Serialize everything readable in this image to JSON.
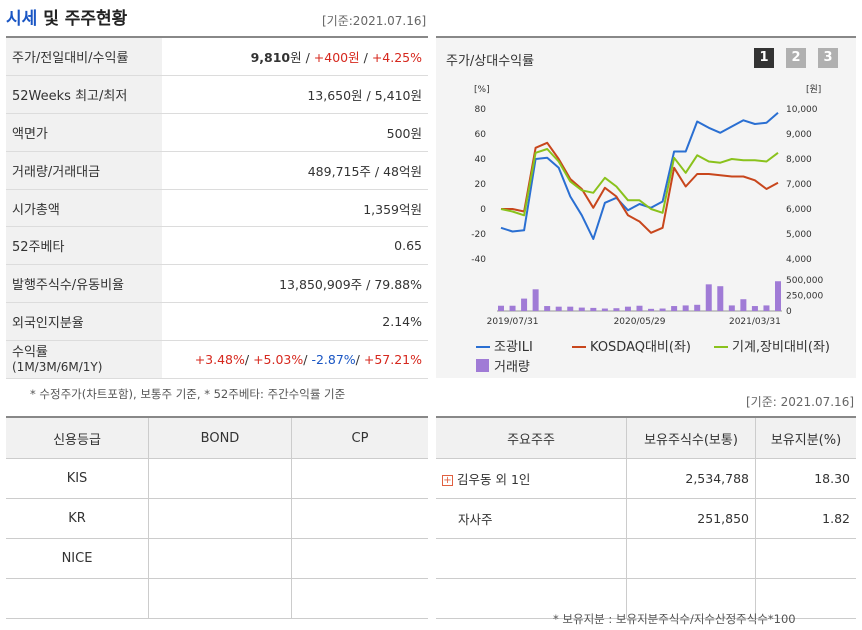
{
  "header": {
    "title_part1": "시세",
    "title_part2": " 및 주주현황",
    "date": "[기준:2021.07.16]"
  },
  "price_table": {
    "rows": [
      {
        "label": "주가/전일대비/수익률",
        "price": "9,810",
        "unit": "원 / ",
        "change": "+400원",
        "sep": " / ",
        "rate": "+4.25%"
      },
      {
        "label": "52Weeks 최고/최저",
        "value": "13,650원 / 5,410원"
      },
      {
        "label": "액면가",
        "value": "500원"
      },
      {
        "label": "거래량/거래대금",
        "value": "489,715주 / 48억원"
      },
      {
        "label": "시가총액",
        "value": "1,359억원"
      },
      {
        "label": "52주베타",
        "value": "0.65"
      },
      {
        "label": "발행주식수/유동비율",
        "value": "13,850,909주 / 79.88%"
      },
      {
        "label": "외국인지분율",
        "value": "2.14%"
      }
    ],
    "returns": {
      "label_line1": "수익률",
      "label_line2": "(1M/3M/6M/1Y)",
      "r1": "+3.48%",
      "r2": "+5.03%",
      "r3": "-2.87%",
      "r4": "+57.21%",
      "sep": "/ "
    },
    "footnote": "* 수정주가(차트포함), 보통주 기준, * 52주베타: 주간수익률 기준"
  },
  "chart": {
    "title": "주가/상대수익률",
    "pages": [
      "1",
      "2",
      "3"
    ],
    "active_page": 0,
    "left_unit": "[%]",
    "right_unit": "[원]"
  },
  "chart_data": {
    "type": "line",
    "x_ticks": [
      "2019/07/31",
      "2020/05/29",
      "2021/03/31"
    ],
    "y_left_ticks": [
      "80",
      "60",
      "40",
      "20",
      "0",
      "-20",
      "-40"
    ],
    "y_left_range": [
      -40,
      80
    ],
    "y_right_ticks": [
      "10,000",
      "9,000",
      "8,000",
      "7,000",
      "6,000",
      "5,000",
      "4,000"
    ],
    "y_right_range": [
      4000,
      10000
    ],
    "volume_ticks": [
      "500,000",
      "250,000",
      "0"
    ],
    "volume_range": [
      0,
      500000
    ],
    "series": [
      {
        "name": "조광ILI",
        "color": "#2a6fd2",
        "values": [
          -15,
          -18,
          -17,
          40,
          41,
          33,
          10,
          -5,
          -24,
          5,
          9,
          -1,
          4,
          1,
          6,
          46,
          46,
          70,
          65,
          61,
          66,
          71,
          68,
          69,
          77
        ]
      },
      {
        "name": "KOSDAQ대비(좌)",
        "color": "#c8461c",
        "values": [
          0,
          0,
          -2,
          49,
          53,
          40,
          24,
          16,
          1,
          17,
          10,
          -5,
          -10,
          -19,
          -15,
          33,
          18,
          28,
          28,
          27,
          26,
          26,
          23,
          16,
          21
        ]
      },
      {
        "name": "기계,장비대비(좌)",
        "color": "#8ac21c",
        "values": [
          0,
          -2,
          -5,
          45,
          48,
          38,
          22,
          15,
          13,
          25,
          18,
          7,
          7,
          0,
          -3,
          41,
          29,
          43,
          38,
          37,
          40,
          39,
          39,
          38,
          45
        ]
      }
    ],
    "volume": {
      "name": "거래량",
      "color": "#a07bd6",
      "values": [
        85000,
        85000,
        200000,
        350000,
        80000,
        70000,
        70000,
        55000,
        50000,
        40000,
        45000,
        70000,
        85000,
        35000,
        40000,
        80000,
        90000,
        100000,
        430000,
        400000,
        90000,
        190000,
        80000,
        90000,
        480000
      ]
    }
  },
  "credit_table": {
    "headers": [
      "신용등급",
      "BOND",
      "CP"
    ],
    "rows": [
      "KIS",
      "KR",
      "NICE"
    ]
  },
  "holder_section": {
    "date": "[기준: 2021.07.16]",
    "headers": [
      "주요주주",
      "보유주식수(보통)",
      "보유지분(%)"
    ],
    "rows": [
      {
        "name": "김우동 외 1인",
        "shares": "2,534,788",
        "pct": "18.30"
      },
      {
        "name": "자사주",
        "shares": "251,850",
        "pct": "1.82"
      }
    ],
    "footnote": "* 보유지분 : 보유지분주식수/지수산정주식수*100"
  }
}
